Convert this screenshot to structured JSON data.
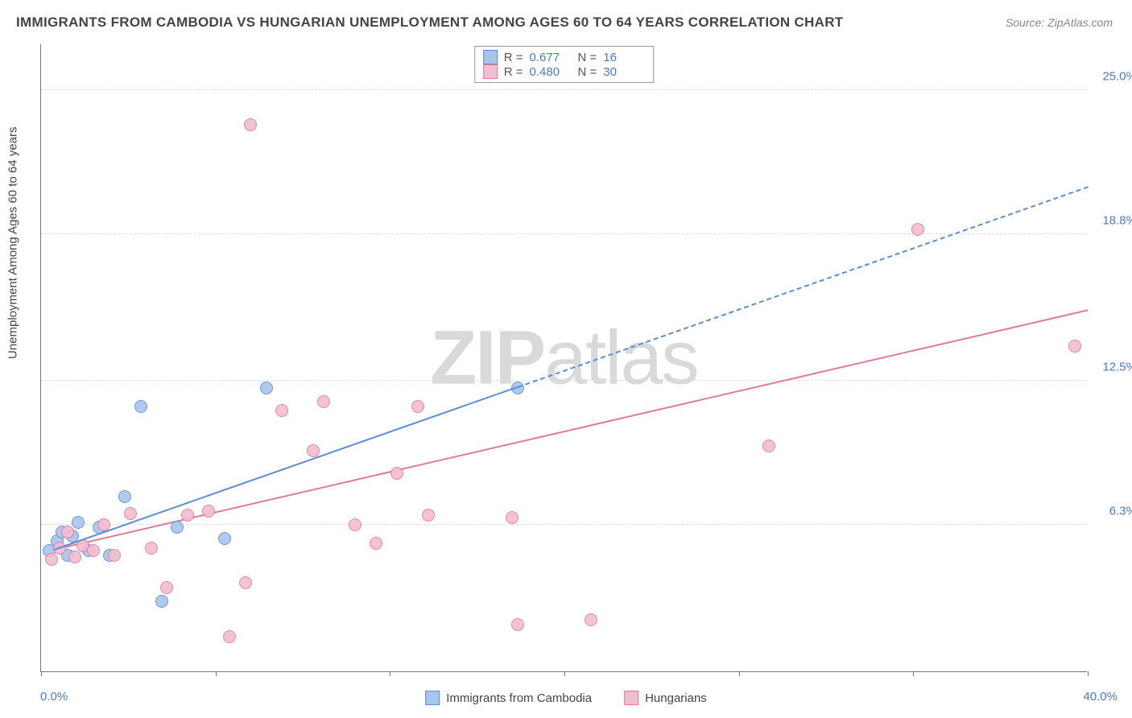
{
  "title": "IMMIGRANTS FROM CAMBODIA VS HUNGARIAN UNEMPLOYMENT AMONG AGES 60 TO 64 YEARS CORRELATION CHART",
  "source": "Source: ZipAtlas.com",
  "ylabel": "Unemployment Among Ages 60 to 64 years",
  "watermark_bold": "ZIP",
  "watermark_rest": "atlas",
  "chart": {
    "type": "scatter",
    "plot_bg": "#ffffff",
    "grid_color": "#dddddd",
    "axis_color": "#777777",
    "axis_value_color": "#4a7ac7",
    "axis_value_fontsize": 15,
    "title_fontsize": 17,
    "title_color": "#444444",
    "xlim": [
      0,
      40
    ],
    "ylim": [
      0,
      27
    ],
    "y_gridlines": [
      6.3,
      12.5,
      18.8,
      25.0
    ],
    "y_tick_labels": [
      "6.3%",
      "12.5%",
      "18.8%",
      "25.0%"
    ],
    "x_ticks": [
      0,
      6.67,
      13.33,
      20,
      26.67,
      33.33,
      40
    ],
    "x_min_label": "0.0%",
    "x_max_label": "40.0%",
    "marker_radius": 8,
    "marker_border_width": 1.5,
    "marker_fill_opacity": 0.35,
    "trend_line_width": 2
  },
  "series": [
    {
      "name": "Immigrants from Cambodia",
      "stroke": "#5b8dd6",
      "fill": "#a8c5eb",
      "R": "0.677",
      "N": "16",
      "points": [
        [
          0.3,
          5.2
        ],
        [
          0.6,
          5.6
        ],
        [
          0.8,
          6.0
        ],
        [
          1.0,
          5.0
        ],
        [
          1.2,
          5.8
        ],
        [
          1.4,
          6.4
        ],
        [
          1.8,
          5.2
        ],
        [
          2.2,
          6.2
        ],
        [
          2.6,
          5.0
        ],
        [
          3.2,
          7.5
        ],
        [
          3.8,
          11.4
        ],
        [
          5.2,
          6.2
        ],
        [
          4.6,
          3.0
        ],
        [
          7.0,
          5.7
        ],
        [
          8.6,
          12.2
        ],
        [
          18.2,
          12.2
        ]
      ],
      "trend": {
        "x0": 0.5,
        "y0": 5.2,
        "x1": 40,
        "y1": 20.8,
        "dashed": true,
        "solid_until_x": 18.2
      }
    },
    {
      "name": "Hungarians",
      "stroke": "#e07a9a",
      "fill": "#f3bdcf",
      "R": "0.480",
      "N": "30",
      "points": [
        [
          0.4,
          4.8
        ],
        [
          0.7,
          5.3
        ],
        [
          1.0,
          6.0
        ],
        [
          1.3,
          4.9
        ],
        [
          1.6,
          5.4
        ],
        [
          2.0,
          5.2
        ],
        [
          2.4,
          6.3
        ],
        [
          2.8,
          5.0
        ],
        [
          3.4,
          6.8
        ],
        [
          4.2,
          5.3
        ],
        [
          4.8,
          3.6
        ],
        [
          5.6,
          6.7
        ],
        [
          6.4,
          6.9
        ],
        [
          7.2,
          1.5
        ],
        [
          7.8,
          3.8
        ],
        [
          8.0,
          23.5
        ],
        [
          9.2,
          11.2
        ],
        [
          10.4,
          9.5
        ],
        [
          10.8,
          11.6
        ],
        [
          12.0,
          6.3
        ],
        [
          12.8,
          5.5
        ],
        [
          13.6,
          8.5
        ],
        [
          14.4,
          11.4
        ],
        [
          14.8,
          6.7
        ],
        [
          18.2,
          2.0
        ],
        [
          18.0,
          6.6
        ],
        [
          21.0,
          2.2
        ],
        [
          27.8,
          9.7
        ],
        [
          33.5,
          19.0
        ],
        [
          39.5,
          14.0
        ]
      ],
      "trend": {
        "x0": 0.5,
        "y0": 5.2,
        "x1": 40,
        "y1": 15.5,
        "dashed": false
      }
    }
  ],
  "legend_top": {
    "R_label": "R =",
    "N_label": "N ="
  }
}
